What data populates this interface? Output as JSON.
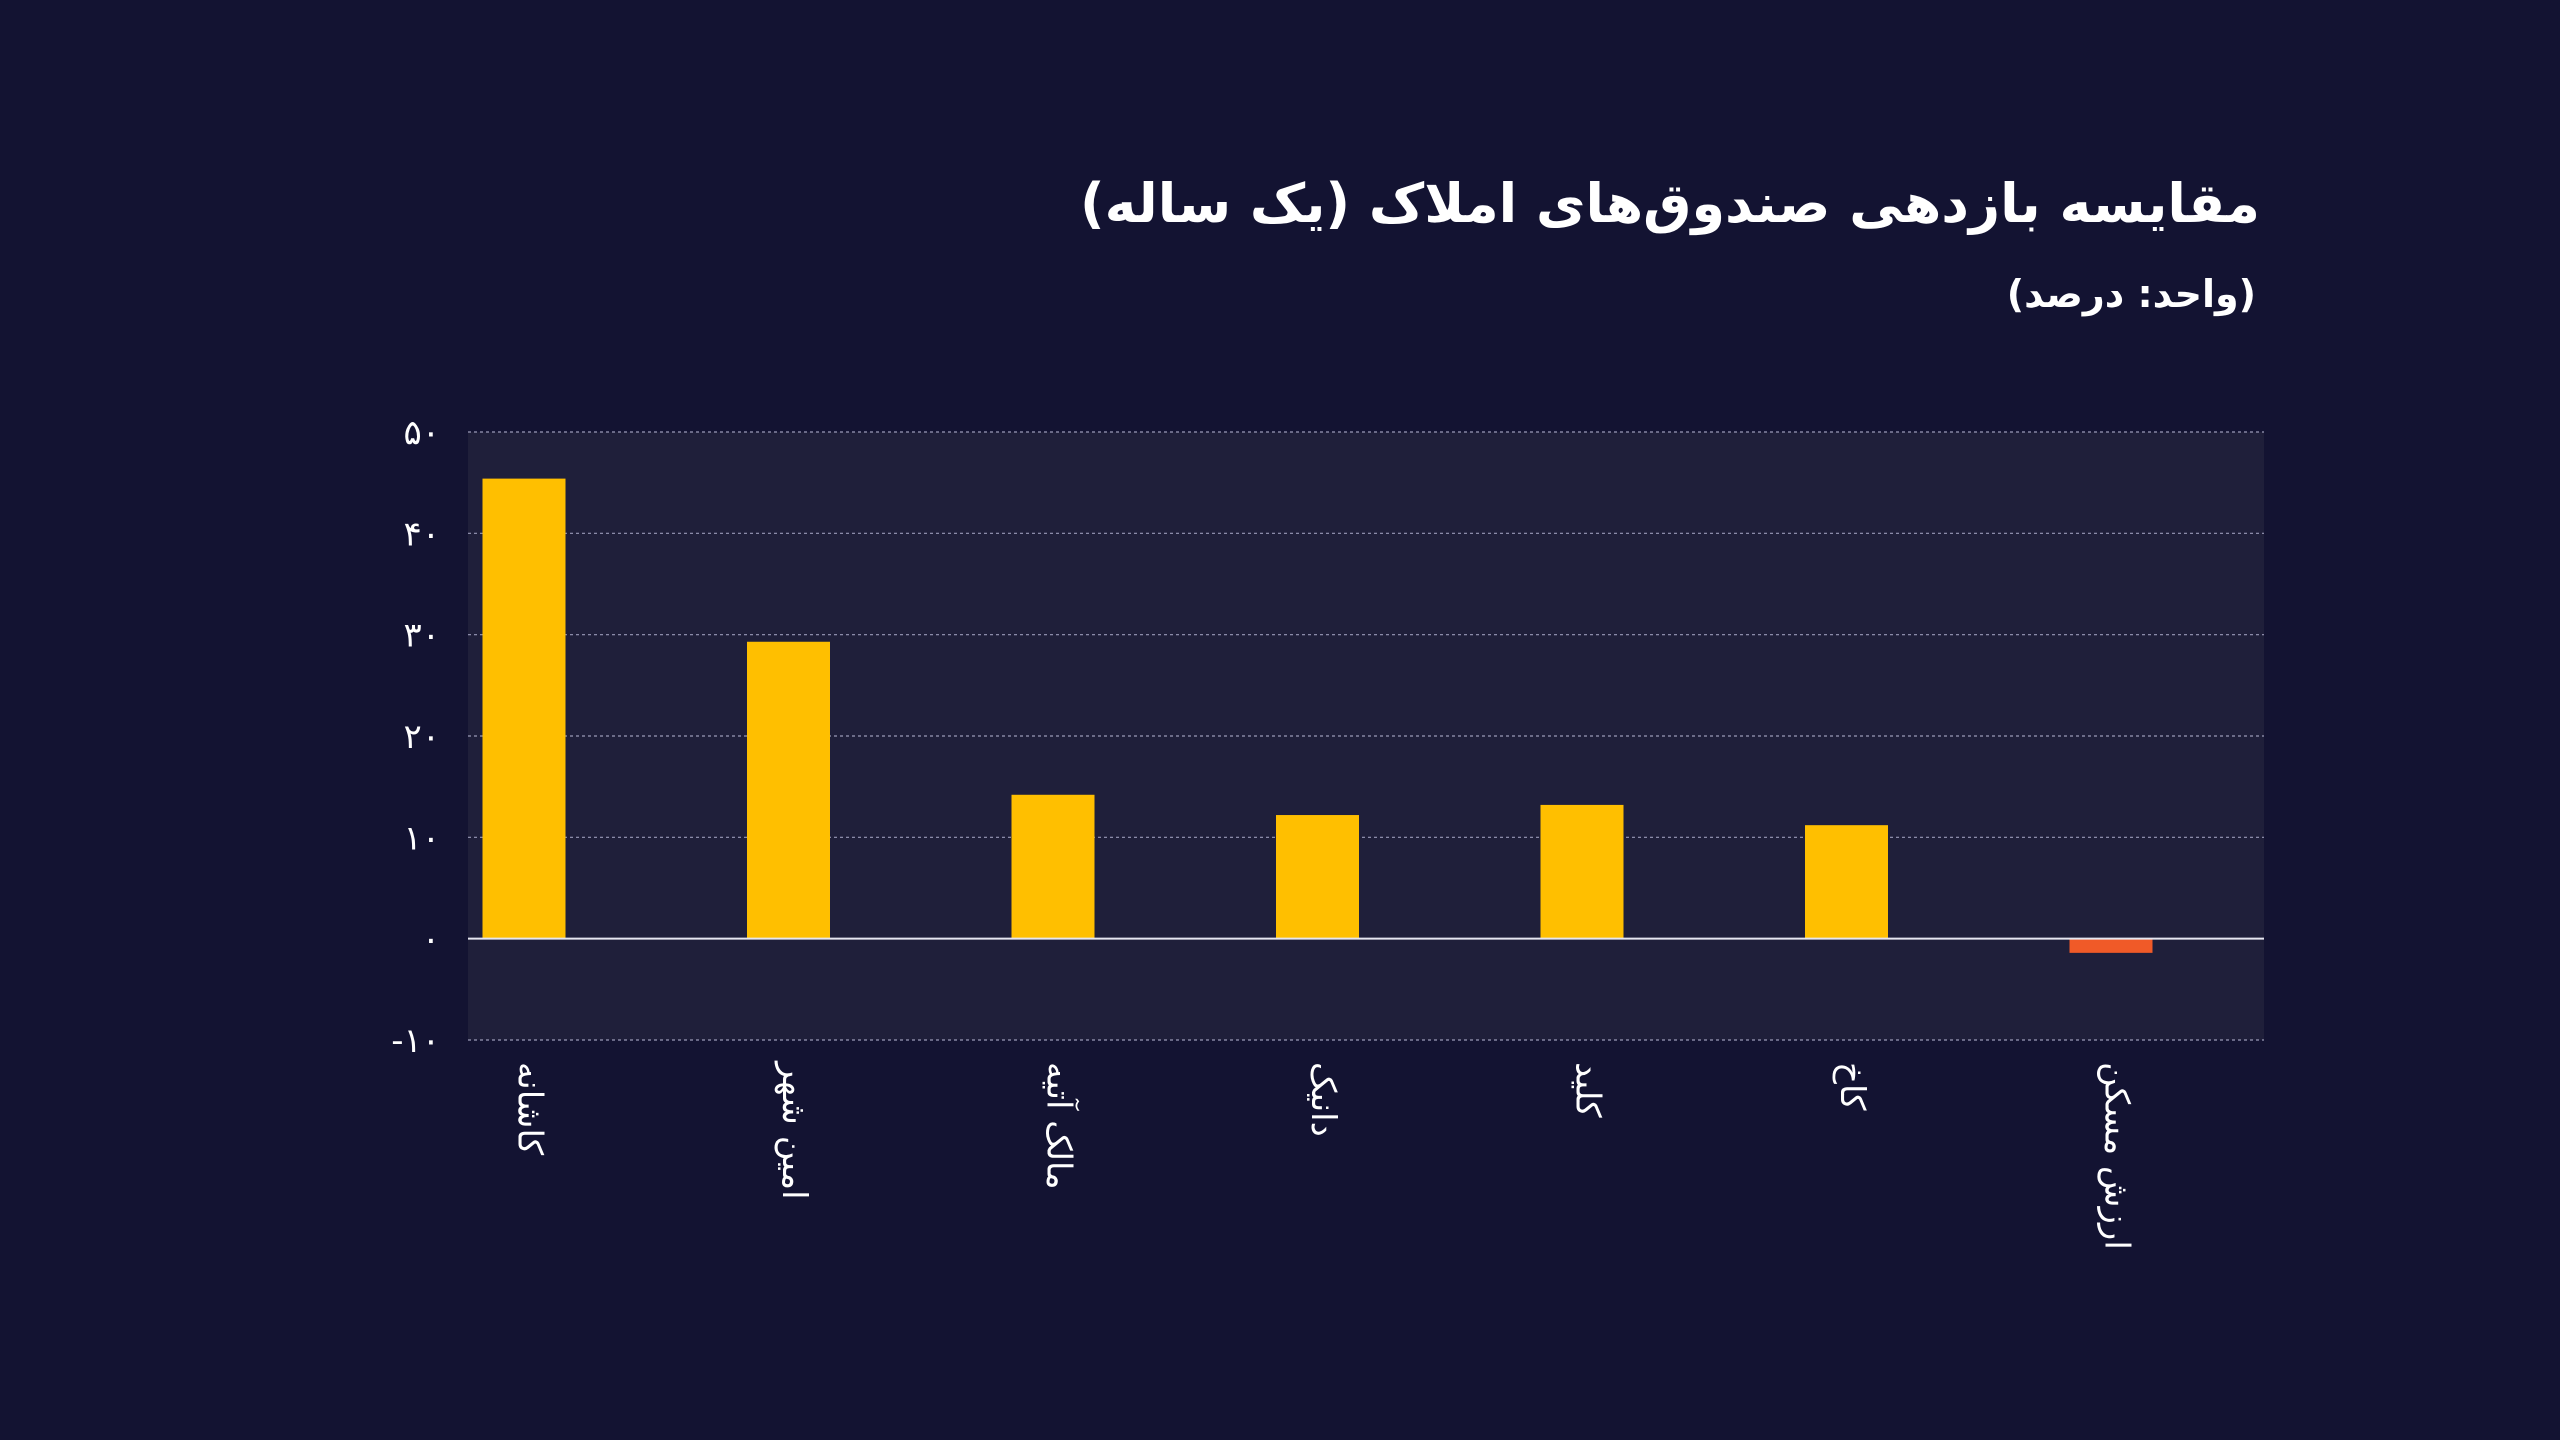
{
  "chart_data": {
    "type": "bar",
    "title": "مقایسه بازدهی صندوق‌های املاک (یک ساله)",
    "subtitle": "(واحد: درصد)",
    "categories": [
      "کاشانه",
      "امین شهر",
      "مالک آتیه",
      "دانیک",
      "کلید",
      "کاخ",
      "ارزش مسکن"
    ],
    "values": [
      45.4,
      29.3,
      14.2,
      12.2,
      13.2,
      11.2,
      -1.4
    ],
    "ylim": [
      -10,
      50
    ],
    "yticks": [
      50,
      40,
      30,
      20,
      10,
      0,
      -10
    ],
    "ytick_labels": [
      "۵۰",
      "۴۰",
      "۳۰",
      "۲۰",
      "۱۰",
      "۰",
      "-۱۰"
    ],
    "grid": true,
    "xlabel": "",
    "ylabel": "",
    "colors": {
      "background": "#131332",
      "plot_area": "#1f1f3a",
      "positive": "#ffbf00",
      "negative": "#f05a28",
      "grid": "#9a9ab8",
      "zero_line": "#e6e6f0",
      "text": "#ffffff"
    }
  }
}
